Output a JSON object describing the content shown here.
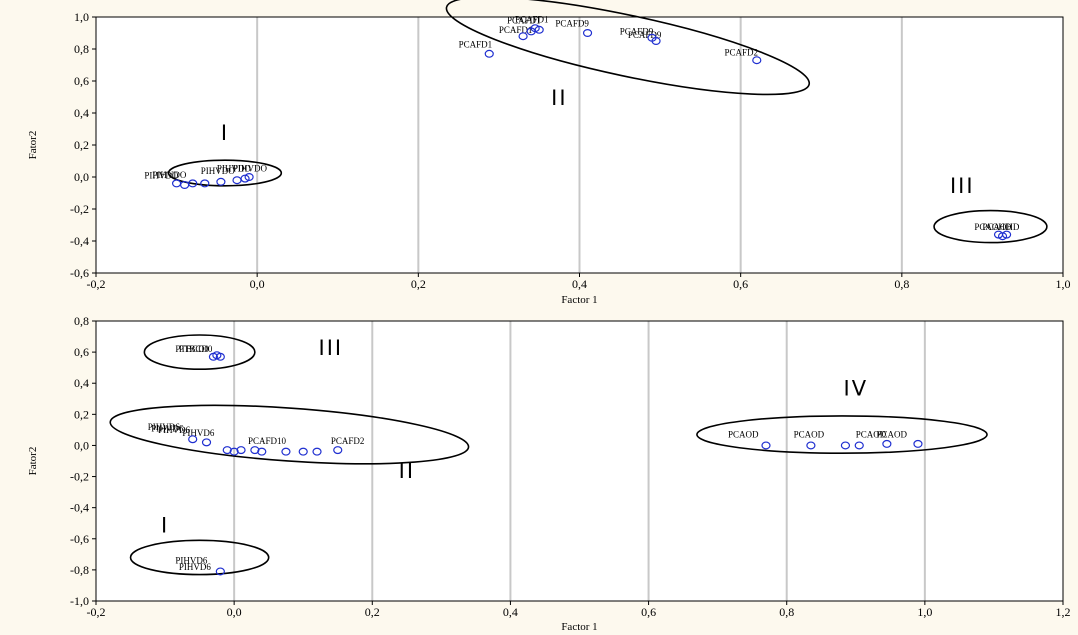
{
  "chart_data": [
    {
      "type": "scatter",
      "xlabel": "Factor 1",
      "ylabel": "Fator2",
      "xlim": [
        -0.2,
        1.0
      ],
      "ylim": [
        -0.6,
        1.0
      ],
      "xticks": [
        "-0,2",
        "0,0",
        "0,2",
        "0,4",
        "0,6",
        "0,8",
        "1,0"
      ],
      "yticks": [
        "1,0",
        "0,8",
        "0,6",
        "0,4",
        "0,2",
        "0,0",
        "-0,2",
        "-0,4",
        "-0,6"
      ],
      "vgrid": [
        0.0,
        0.2,
        0.4,
        0.6,
        0.8
      ],
      "grid": "vertical",
      "point_color": "#1f2fd0",
      "points": [
        {
          "x": -0.1,
          "y": -0.04
        },
        {
          "x": -0.09,
          "y": -0.05
        },
        {
          "x": -0.08,
          "y": -0.04
        },
        {
          "x": -0.065,
          "y": -0.04
        },
        {
          "x": -0.045,
          "y": -0.03
        },
        {
          "x": -0.025,
          "y": -0.02
        },
        {
          "x": -0.015,
          "y": -0.01
        },
        {
          "x": -0.01,
          "y": 0.0
        },
        {
          "x": 0.288,
          "y": 0.77
        },
        {
          "x": 0.33,
          "y": 0.88
        },
        {
          "x": 0.34,
          "y": 0.91
        },
        {
          "x": 0.345,
          "y": 0.93
        },
        {
          "x": 0.35,
          "y": 0.92
        },
        {
          "x": 0.41,
          "y": 0.9
        },
        {
          "x": 0.49,
          "y": 0.87
        },
        {
          "x": 0.495,
          "y": 0.85
        },
        {
          "x": 0.62,
          "y": 0.73
        },
        {
          "x": 0.92,
          "y": -0.36
        },
        {
          "x": 0.925,
          "y": -0.37
        },
        {
          "x": 0.93,
          "y": -0.36
        }
      ],
      "labels": [
        {
          "x": 0.25,
          "y": 0.81,
          "text": "PCAFD1"
        },
        {
          "x": 0.3,
          "y": 0.9,
          "text": "PCAFD1"
        },
        {
          "x": 0.31,
          "y": 0.96,
          "text": "PCAFD1"
        },
        {
          "x": 0.32,
          "y": 0.965,
          "text": "PCAFD1"
        },
        {
          "x": 0.37,
          "y": 0.94,
          "text": "PCAFD9"
        },
        {
          "x": 0.45,
          "y": 0.89,
          "text": "PCAFD9"
        },
        {
          "x": 0.46,
          "y": 0.87,
          "text": "PCAFD9"
        },
        {
          "x": 0.58,
          "y": 0.76,
          "text": "PCAFD2"
        },
        {
          "x": -0.14,
          "y": -0.01,
          "text": "PIHVDO"
        },
        {
          "x": -0.13,
          "y": -0.005,
          "text": "PIHVDO"
        },
        {
          "x": -0.07,
          "y": 0.02,
          "text": "PIHVDO"
        },
        {
          "x": -0.05,
          "y": 0.035,
          "text": "PIHVDO"
        },
        {
          "x": -0.03,
          "y": 0.035,
          "text": "PIHVDO"
        },
        {
          "x": 0.89,
          "y": -0.33,
          "text": "PCAOHD"
        },
        {
          "x": 0.9,
          "y": -0.33,
          "text": "PCAOHD"
        }
      ],
      "ellipses": [
        {
          "cx": -0.04,
          "cy": 0.025,
          "rx": 0.07,
          "ry": 0.08
        },
        {
          "cx": 0.46,
          "cy": 0.82,
          "rx": 0.23,
          "ry": 0.19,
          "rotate": 12
        },
        {
          "cx": 0.91,
          "cy": -0.31,
          "rx": 0.07,
          "ry": 0.1
        }
      ],
      "cluster_labels": [
        {
          "x": -0.04,
          "y": 0.23,
          "text": "I"
        },
        {
          "x": 0.375,
          "y": 0.45,
          "text": "II"
        },
        {
          "x": 0.875,
          "y": -0.1,
          "text": "III"
        }
      ]
    },
    {
      "type": "scatter",
      "xlabel": "Factor 1",
      "ylabel": "Fator2",
      "xlim": [
        -0.2,
        1.2
      ],
      "ylim": [
        -1.0,
        0.8
      ],
      "xticks": [
        "-0,2",
        "0,0",
        "0,2",
        "0,4",
        "0,6",
        "0,8",
        "1,0",
        "1,2"
      ],
      "yticks": [
        "0,8",
        "0,6",
        "0,4",
        "0,2",
        "0,0",
        "-0,2",
        "-0,4",
        "-0,6",
        "-0,8",
        "-1,0"
      ],
      "vgrid": [
        0.0,
        0.2,
        0.4,
        0.6,
        0.8,
        1.0
      ],
      "grid": "vertical",
      "point_color": "#1f2fd0",
      "points": [
        {
          "x": -0.03,
          "y": 0.57
        },
        {
          "x": -0.025,
          "y": 0.58
        },
        {
          "x": -0.02,
          "y": 0.57
        },
        {
          "x": -0.06,
          "y": 0.04
        },
        {
          "x": -0.04,
          "y": 0.02
        },
        {
          "x": -0.01,
          "y": -0.03
        },
        {
          "x": 0.0,
          "y": -0.04
        },
        {
          "x": 0.01,
          "y": -0.03
        },
        {
          "x": 0.03,
          "y": -0.03
        },
        {
          "x": 0.04,
          "y": -0.04
        },
        {
          "x": 0.075,
          "y": -0.04
        },
        {
          "x": 0.1,
          "y": -0.04
        },
        {
          "x": 0.12,
          "y": -0.04
        },
        {
          "x": 0.15,
          "y": -0.03
        },
        {
          "x": 0.77,
          "y": 0.0
        },
        {
          "x": 0.835,
          "y": 0.0
        },
        {
          "x": 0.885,
          "y": 0.0
        },
        {
          "x": 0.905,
          "y": 0.0
        },
        {
          "x": 0.945,
          "y": 0.01
        },
        {
          "x": 0.99,
          "y": 0.01
        },
        {
          "x": -0.02,
          "y": -0.81
        }
      ],
      "labels": [
        {
          "x": -0.085,
          "y": 0.6,
          "text": "PTBCD0"
        },
        {
          "x": -0.08,
          "y": 0.6,
          "text": "PTBCD0"
        },
        {
          "x": -0.125,
          "y": 0.1,
          "text": "PIHVD6"
        },
        {
          "x": -0.12,
          "y": 0.09,
          "text": "PIHVD6"
        },
        {
          "x": -0.11,
          "y": 0.08,
          "text": "PIHVD6"
        },
        {
          "x": -0.075,
          "y": 0.06,
          "text": "PIHVD6"
        },
        {
          "x": 0.02,
          "y": 0.01,
          "text": "PCAFD10"
        },
        {
          "x": 0.14,
          "y": 0.01,
          "text": "PCAFD2"
        },
        {
          "x": -0.085,
          "y": -0.76,
          "text": "PIHVD6"
        },
        {
          "x": -0.08,
          "y": -0.8,
          "text": "PIHVD6"
        },
        {
          "x": 0.715,
          "y": 0.05,
          "text": "PCAOD"
        },
        {
          "x": 0.81,
          "y": 0.05,
          "text": "PCAOD"
        },
        {
          "x": 0.9,
          "y": 0.05,
          "text": "PCAOD"
        },
        {
          "x": 0.93,
          "y": 0.05,
          "text": "PCAOD"
        }
      ],
      "ellipses": [
        {
          "cx": -0.05,
          "cy": 0.6,
          "rx": 0.08,
          "ry": 0.11
        },
        {
          "cx": 0.08,
          "cy": 0.07,
          "rx": 0.26,
          "ry": 0.17,
          "rotate": 4
        },
        {
          "cx": -0.05,
          "cy": -0.72,
          "rx": 0.1,
          "ry": 0.11
        },
        {
          "cx": 0.88,
          "cy": 0.07,
          "rx": 0.21,
          "ry": 0.12
        }
      ],
      "cluster_labels": [
        {
          "x": 0.14,
          "y": 0.58,
          "text": "III"
        },
        {
          "x": 0.25,
          "y": -0.21,
          "text": "II"
        },
        {
          "x": -0.1,
          "y": -0.56,
          "text": "I"
        },
        {
          "x": 0.9,
          "y": 0.32,
          "text": "IV"
        }
      ]
    }
  ]
}
